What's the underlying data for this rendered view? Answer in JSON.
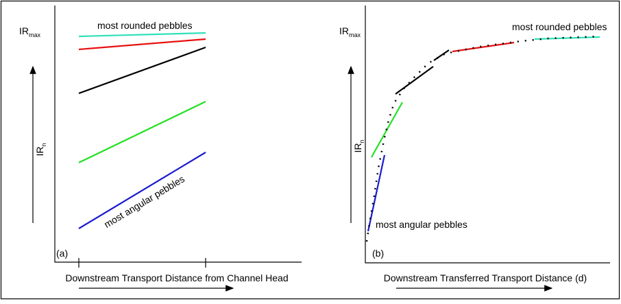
{
  "panel_a": {
    "label": "(a)",
    "y_max": {
      "main": "IR",
      "sub": "max"
    },
    "y_axis": {
      "main": "IR",
      "sub": "n"
    },
    "x_axis": "Downstream Transport Distance from Channel Head",
    "top_note": "most rounded pebbles",
    "bottom_note": "most angular pebbles"
  },
  "panel_b": {
    "label": "(b)",
    "y_max": {
      "main": "IR",
      "sub": "max"
    },
    "y_axis": {
      "main": "IR",
      "sub": "n"
    },
    "x_axis": "Downstream Transferred Transport Distance (d)",
    "top_note": "most rounded pebbles",
    "bottom_note": "most angular pebbles"
  }
}
